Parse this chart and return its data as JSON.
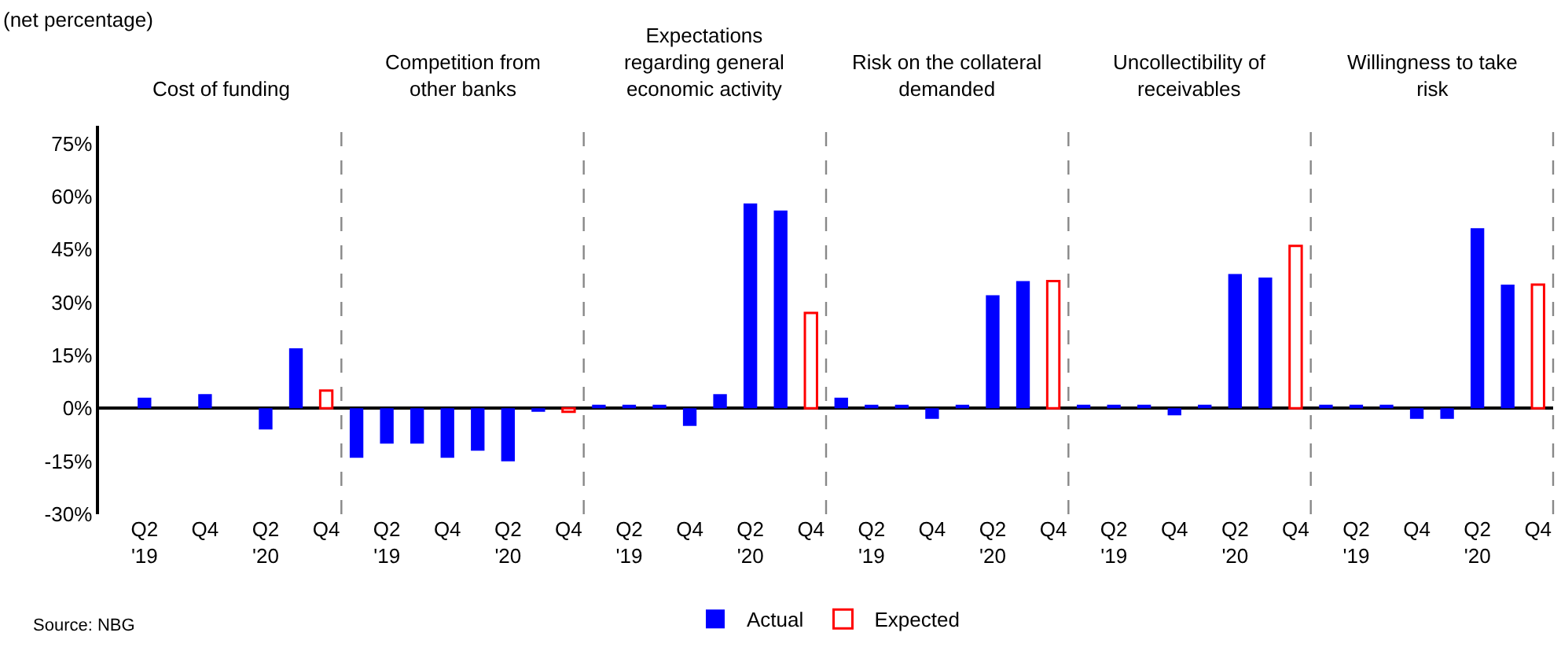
{
  "chart_data": [
    {
      "type": "bar",
      "title": "Cost of funding",
      "subtitle": "(net percentage)",
      "annotations": [
        "Source: NBG"
      ],
      "categories": [
        null,
        "Q2\n'19",
        null,
        "Q4",
        null,
        "Q2\n'20",
        null,
        "Q4"
      ],
      "ylim": [
        -30,
        80
      ],
      "yticks": [
        {
          "value": -30,
          "label": "-30%"
        },
        {
          "value": -15,
          "label": "-15%"
        },
        {
          "value": 0,
          "label": "0%"
        },
        {
          "value": 15,
          "label": "15%"
        },
        {
          "value": 30,
          "label": "30%"
        },
        {
          "value": 45,
          "label": "45%"
        },
        {
          "value": 60,
          "label": "60%"
        },
        {
          "value": 75,
          "label": "75%"
        }
      ],
      "legend": "bottom",
      "series": [
        {
          "name": "Actual",
          "color": "#0000ff",
          "values": [
            null,
            3,
            null,
            4,
            null,
            -6,
            17,
            null
          ]
        },
        {
          "name": "Expected",
          "color": "#ff0000",
          "values": [
            null,
            null,
            null,
            null,
            null,
            null,
            null,
            5
          ]
        }
      ]
    },
    {
      "type": "bar",
      "title": "Competition from\nother banks",
      "categories": [
        null,
        "Q2\n'19",
        null,
        "Q4",
        null,
        "Q2\n'20",
        null,
        "Q4"
      ],
      "ylim": [
        -30,
        80
      ],
      "tick_labels": "x",
      "series": [
        {
          "color": "#0000ff",
          "values": [
            -14,
            -10,
            -10,
            -14,
            -12,
            -15,
            -1,
            null
          ]
        },
        {
          "color": "#ff0000",
          "values": [
            null,
            null,
            null,
            null,
            null,
            null,
            null,
            -1
          ]
        }
      ]
    },
    {
      "type": "bar",
      "title": "Expectations\nregarding general\neconomic activity",
      "categories": [
        null,
        "Q2\n'19",
        null,
        "Q4",
        null,
        "Q2\n'20",
        null,
        "Q4"
      ],
      "ylim": [
        -30,
        80
      ],
      "tick_labels": "x",
      "series": [
        {
          "color": "#0000ff",
          "values": [
            1,
            1,
            1,
            -5,
            4,
            58,
            56,
            null
          ]
        },
        {
          "color": "#ff0000",
          "values": [
            null,
            null,
            null,
            null,
            null,
            null,
            null,
            27
          ]
        }
      ]
    },
    {
      "type": "bar",
      "title": "Risk on the collateral\ndemanded",
      "categories": [
        null,
        "Q2\n'19",
        null,
        "Q4",
        null,
        "Q2\n'20",
        null,
        "Q4"
      ],
      "ylim": [
        -30,
        80
      ],
      "tick_labels": "x",
      "series": [
        {
          "color": "#0000ff",
          "values": [
            3,
            1,
            1,
            -3,
            1,
            32,
            36,
            null
          ]
        },
        {
          "color": "#ff0000",
          "values": [
            null,
            null,
            null,
            null,
            null,
            null,
            null,
            36
          ]
        }
      ]
    },
    {
      "type": "bar",
      "title": "Uncollectibility of\nreceivables",
      "categories": [
        null,
        "Q2\n'19",
        null,
        "Q4",
        null,
        "Q2\n'20",
        null,
        "Q4"
      ],
      "ylim": [
        -30,
        80
      ],
      "tick_labels": "x",
      "series": [
        {
          "color": "#0000ff",
          "values": [
            1,
            1,
            1,
            -2,
            1,
            38,
            37,
            null
          ]
        },
        {
          "color": "#ff0000",
          "values": [
            null,
            null,
            null,
            null,
            null,
            null,
            null,
            46
          ]
        }
      ]
    },
    {
      "type": "bar",
      "title": "Willingness to take\nrisk",
      "categories": [
        null,
        "Q2\n'19",
        null,
        "Q4",
        null,
        "Q2\n'20",
        null,
        "Q4"
      ],
      "ylim": [
        -30,
        80
      ],
      "tick_labels": "x",
      "series": [
        {
          "color": "#0000ff",
          "values": [
            1,
            1,
            1,
            -3,
            -3,
            51,
            35,
            null
          ]
        },
        {
          "color": "#ff0000",
          "values": [
            null,
            null,
            null,
            null,
            null,
            null,
            null,
            35
          ]
        }
      ]
    }
  ]
}
